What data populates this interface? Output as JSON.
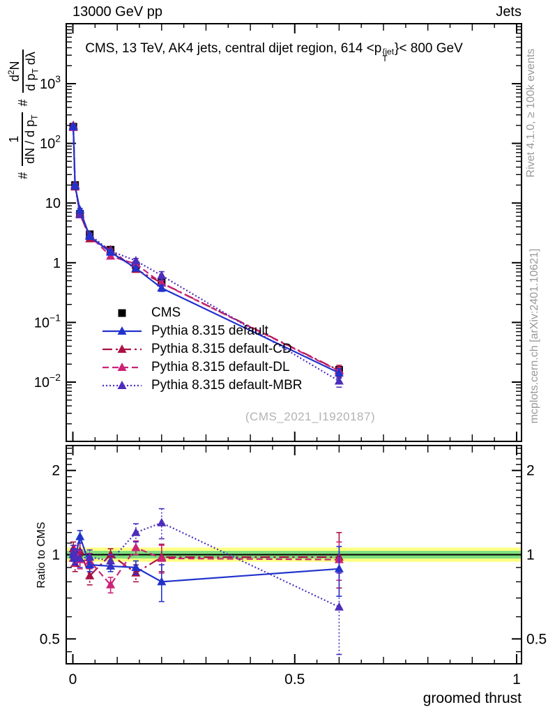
{
  "header": {
    "left": "13000 GeV pp",
    "right": "Jets"
  },
  "title": {
    "prefix": "CMS, 13 TeV, AK4 jets, central dijet region, 614 <p",
    "sup": "{jet",
    "sub": "T",
    "suffix": "}< 800 GeV"
  },
  "ylabel": {
    "hash": "#",
    "f1_num": "1",
    "f1_den_a": "dN / d p",
    "f1_den_sub": "T",
    "hash2": "#",
    "f2_num_a": "d",
    "f2_num_sup": "2",
    "f2_num_b": "N",
    "f2_den_a": "d p",
    "f2_den_sub": "T",
    "f2_den_b": " dλ"
  },
  "right_margin": {
    "top": "Rivet 4.1.0, ≥ 100k events",
    "bottom": "mcplots.cern.ch [arXiv:2401.10621]"
  },
  "watermark": "(CMS_2021_I1920187)",
  "ratio_ylabel": "Ratio to CMS",
  "xlabel": "groomed thrust",
  "colors": {
    "cms": "#000000",
    "default": "#2233cc",
    "cd": "#aa1144",
    "dl": "#cc2277",
    "mbr": "#4d2dbb",
    "band_yellow": "#ffff80",
    "band_green": "#7fdf7f",
    "gray_text": "#999999",
    "watermark": "#b3b3b3"
  },
  "chart_data": {
    "type": "line",
    "title": "CMS, 13 TeV, AK4 jets, central dijet region, 614 < pT^{jet} < 800 GeV",
    "top_left": "13000 GeV pp",
    "top_right": "Jets",
    "xlabel": "groomed thrust",
    "ylabel_main": "# 1/(dN/dp_T) # d^2N/(dp_T dlambda)",
    "ylabel_ratio": "Ratio to CMS",
    "x_range": [
      0,
      1
    ],
    "ylim_main": [
      0.001,
      10000
    ],
    "ylim_ratio": [
      0.41,
      2.45
    ],
    "log_y_main": true,
    "log_y_ratio": true,
    "x_ticks": {
      "values": [
        0,
        0.5,
        1
      ],
      "labels": [
        "0",
        "0.5",
        "1"
      ]
    },
    "y_ticks_main": [
      1000,
      100,
      10,
      1,
      0.1,
      0.01
    ],
    "y_ticks_ratio": {
      "values": [
        2,
        1,
        0.5
      ],
      "labels": [
        "2",
        "1",
        "0.5"
      ]
    },
    "bands": {
      "center": 1,
      "yellow_halfwidth": 0.06,
      "green_halfwidth": 0.032
    },
    "x": [
      0.001,
      0.005,
      0.016,
      0.038,
      0.085,
      0.142,
      0.2,
      0.6
    ],
    "series": [
      {
        "label": "CMS",
        "color": "#000000",
        "marker": "square",
        "line": "none",
        "main": [
          190,
          20,
          6.6,
          3.0,
          1.65,
          0.9,
          0.47,
          0.016
        ],
        "main_rel_err": [
          0.03,
          0.03,
          0.03,
          0.04,
          0.05,
          0.06,
          0.08,
          0.12
        ]
      },
      {
        "label": "Pythia 8.315 default",
        "color": "#2233cc",
        "marker": "triangle",
        "line": "solid",
        "ratio": [
          1.0,
          0.97,
          1.16,
          0.92,
          0.91,
          0.9,
          0.8,
          0.89
        ],
        "ratio_err": [
          0.05,
          0.05,
          0.06,
          0.05,
          0.04,
          0.05,
          0.12,
          0.18
        ]
      },
      {
        "label": "Pythia 8.315 default-CD",
        "color": "#aa1144",
        "marker": "triangle",
        "line": "dashdot",
        "ratio": [
          1.05,
          0.93,
          1.03,
          0.84,
          1.0,
          0.86,
          0.98,
          0.98
        ],
        "ratio_err": [
          0.06,
          0.06,
          0.07,
          0.06,
          0.05,
          0.06,
          0.11,
          0.22
        ]
      },
      {
        "label": "Pythia 8.315 default-DL",
        "color": "#cc2277",
        "marker": "triangle",
        "line": "dashed",
        "ratio": [
          0.97,
          1.02,
          0.96,
          0.95,
          0.78,
          1.06,
          0.97,
          0.96
        ],
        "ratio_err": [
          0.06,
          0.06,
          0.07,
          0.06,
          0.05,
          0.06,
          0.11,
          0.15
        ]
      },
      {
        "label": "Pythia 8.315 default-MBR",
        "color": "#4d2dbb",
        "marker": "triangle",
        "line": "dotted",
        "ratio": [
          1.02,
          0.99,
          0.97,
          0.98,
          0.95,
          1.2,
          1.3,
          0.65
        ],
        "ratio_err": [
          0.06,
          0.06,
          0.07,
          0.06,
          0.05,
          0.09,
          0.16,
          0.21
        ]
      }
    ]
  }
}
